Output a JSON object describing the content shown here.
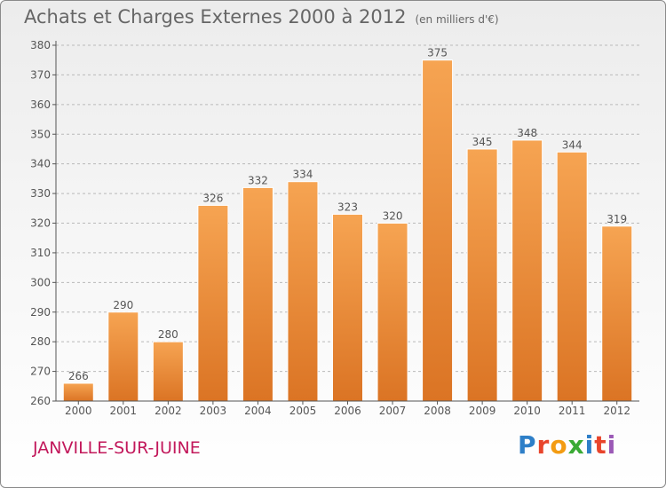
{
  "title": "Achats et Charges Externes 2000 à 2012",
  "unit_note": "(en milliers d'€)",
  "commune": "JANVILLE-SUR-JUINE",
  "logo": {
    "text": "Proxiti",
    "letter_colors": [
      "#2e7fc8",
      "#e8452c",
      "#f39c12",
      "#3aaa35",
      "#2e7fc8",
      "#e8452c",
      "#9b59b6"
    ]
  },
  "colors": {
    "bar_top": "#f6a452",
    "bar_bottom": "#db7424",
    "bar_edge": "#ffffff",
    "grid": "#b9b9b9",
    "axis": "#555555",
    "text": "#555555",
    "commune": "#c2185b"
  },
  "chart_data": {
    "type": "bar",
    "title": "Achats et Charges Externes 2000 à 2012",
    "categories": [
      "2000",
      "2001",
      "2002",
      "2003",
      "2004",
      "2005",
      "2006",
      "2007",
      "2008",
      "2009",
      "2010",
      "2011",
      "2012"
    ],
    "values": [
      266,
      290,
      280,
      326,
      332,
      334,
      323,
      320,
      375,
      345,
      348,
      344,
      319
    ],
    "ylim": [
      260,
      380
    ],
    "yticks": [
      260,
      270,
      280,
      290,
      300,
      310,
      320,
      330,
      340,
      350,
      360,
      370,
      380
    ],
    "grid": "horizontal dashed",
    "data_labels": true
  }
}
